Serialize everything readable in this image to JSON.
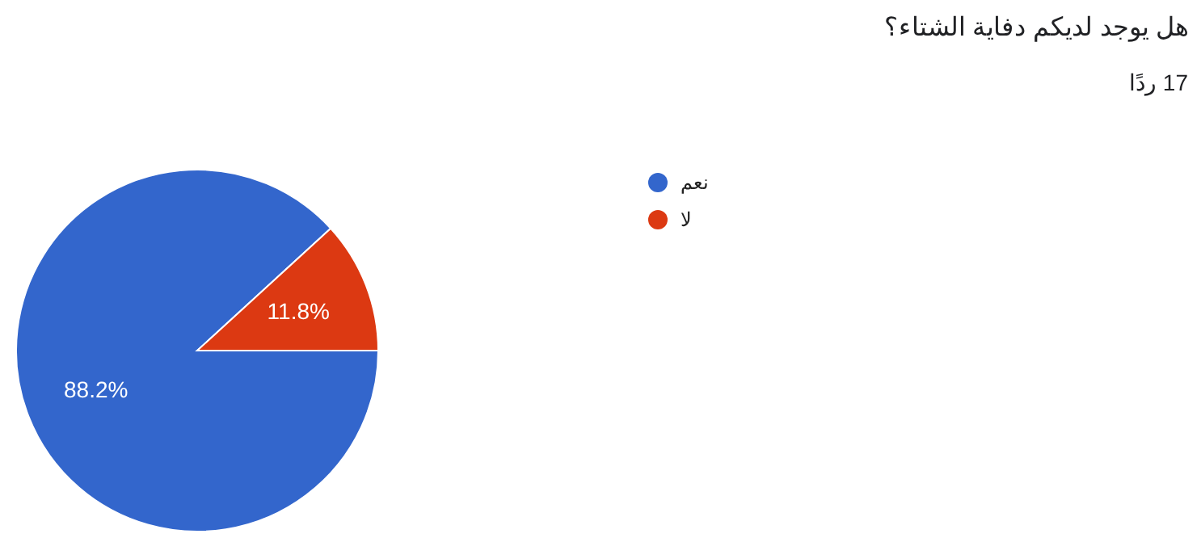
{
  "chart_data": {
    "type": "pie",
    "title": "هل يوجد لديكم دفاية الشتاء؟",
    "subtitle": "17 ردًا",
    "categories": [
      "نعم",
      "لا"
    ],
    "values": [
      88.2,
      11.8
    ],
    "colors": [
      "#3366cc",
      "#dc3912"
    ],
    "value_labels": [
      "88.2%",
      "11.8%"
    ],
    "legend": "right"
  }
}
